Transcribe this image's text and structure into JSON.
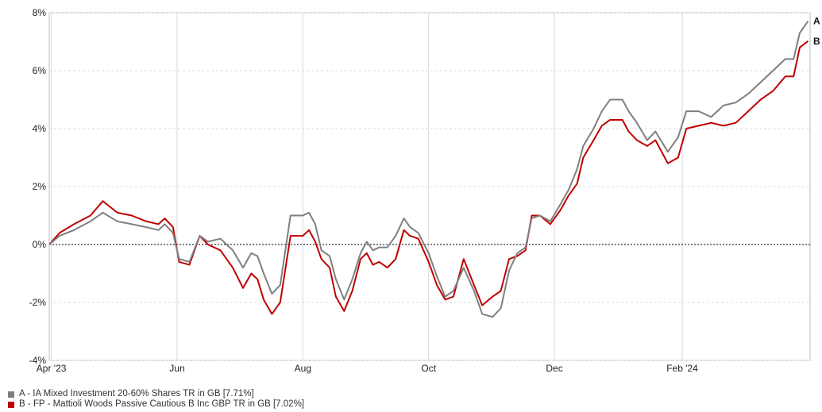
{
  "chart_data": {
    "type": "line",
    "title": "",
    "xlabel": "",
    "ylabel": "",
    "xlim": [
      "2023-03-31",
      "2024-04-03"
    ],
    "ylim": [
      -4,
      8
    ],
    "y_ticks": [
      {
        "value": -4,
        "label": "-4%"
      },
      {
        "value": -2,
        "label": "-2%"
      },
      {
        "value": 0,
        "label": "0%"
      },
      {
        "value": 2,
        "label": "2%"
      },
      {
        "value": 4,
        "label": "4%"
      },
      {
        "value": 6,
        "label": "6%"
      },
      {
        "value": 8,
        "label": "8%"
      }
    ],
    "x_ticks": [
      {
        "date": "2023-04-01",
        "label": "Apr '23"
      },
      {
        "date": "2023-06-01",
        "label": "Jun"
      },
      {
        "date": "2023-08-01",
        "label": "Aug"
      },
      {
        "date": "2023-10-01",
        "label": "Oct"
      },
      {
        "date": "2023-12-01",
        "label": "Dec"
      },
      {
        "date": "2024-02-01",
        "label": "Feb '24"
      }
    ],
    "grid": true,
    "zero_line": "dotted",
    "legend_position": "bottom-left",
    "series": [
      {
        "name": "A - IA Mixed Investment 20-60% Shares TR in GB [7.71%]",
        "end_label": "A",
        "color": "#7f7f7f",
        "points": [
          [
            "2023-03-31",
            0.0
          ],
          [
            "2023-04-05",
            0.3
          ],
          [
            "2023-04-12",
            0.5
          ],
          [
            "2023-04-20",
            0.8
          ],
          [
            "2023-04-26",
            1.1
          ],
          [
            "2023-05-03",
            0.8
          ],
          [
            "2023-05-10",
            0.7
          ],
          [
            "2023-05-17",
            0.6
          ],
          [
            "2023-05-23",
            0.5
          ],
          [
            "2023-05-26",
            0.7
          ],
          [
            "2023-05-30",
            0.4
          ],
          [
            "2023-06-02",
            -0.5
          ],
          [
            "2023-06-07",
            -0.6
          ],
          [
            "2023-06-12",
            0.3
          ],
          [
            "2023-06-16",
            0.1
          ],
          [
            "2023-06-22",
            0.2
          ],
          [
            "2023-06-28",
            -0.2
          ],
          [
            "2023-07-03",
            -0.8
          ],
          [
            "2023-07-07",
            -0.3
          ],
          [
            "2023-07-10",
            -0.4
          ],
          [
            "2023-07-13",
            -1.0
          ],
          [
            "2023-07-17",
            -1.7
          ],
          [
            "2023-07-21",
            -1.4
          ],
          [
            "2023-07-26",
            1.0
          ],
          [
            "2023-08-01",
            1.0
          ],
          [
            "2023-08-04",
            1.1
          ],
          [
            "2023-08-07",
            0.7
          ],
          [
            "2023-08-10",
            -0.2
          ],
          [
            "2023-08-14",
            -0.4
          ],
          [
            "2023-08-17",
            -1.2
          ],
          [
            "2023-08-21",
            -1.9
          ],
          [
            "2023-08-25",
            -1.2
          ],
          [
            "2023-08-29",
            -0.3
          ],
          [
            "2023-09-01",
            0.1
          ],
          [
            "2023-09-04",
            -0.2
          ],
          [
            "2023-09-07",
            -0.1
          ],
          [
            "2023-09-11",
            -0.1
          ],
          [
            "2023-09-15",
            0.3
          ],
          [
            "2023-09-19",
            0.9
          ],
          [
            "2023-09-22",
            0.6
          ],
          [
            "2023-09-26",
            0.4
          ],
          [
            "2023-10-01",
            -0.3
          ],
          [
            "2023-10-05",
            -1.1
          ],
          [
            "2023-10-09",
            -1.8
          ],
          [
            "2023-10-13",
            -1.6
          ],
          [
            "2023-10-18",
            -0.8
          ],
          [
            "2023-10-23",
            -1.6
          ],
          [
            "2023-10-27",
            -2.4
          ],
          [
            "2023-11-01",
            -2.5
          ],
          [
            "2023-11-05",
            -2.2
          ],
          [
            "2023-11-09",
            -0.9
          ],
          [
            "2023-11-13",
            -0.3
          ],
          [
            "2023-11-17",
            -0.1
          ],
          [
            "2023-11-20",
            0.9
          ],
          [
            "2023-11-24",
            1.0
          ],
          [
            "2023-11-29",
            0.8
          ],
          [
            "2023-12-04",
            1.4
          ],
          [
            "2023-12-08",
            1.9
          ],
          [
            "2023-12-12",
            2.6
          ],
          [
            "2023-12-15",
            3.4
          ],
          [
            "2023-12-20",
            4.0
          ],
          [
            "2023-12-24",
            4.6
          ],
          [
            "2023-12-28",
            5.0
          ],
          [
            "2024-01-03",
            5.0
          ],
          [
            "2024-01-06",
            4.6
          ],
          [
            "2024-01-10",
            4.2
          ],
          [
            "2024-01-15",
            3.6
          ],
          [
            "2024-01-19",
            3.9
          ],
          [
            "2024-01-25",
            3.2
          ],
          [
            "2024-01-30",
            3.7
          ],
          [
            "2024-02-03",
            4.6
          ],
          [
            "2024-02-09",
            4.6
          ],
          [
            "2024-02-15",
            4.4
          ],
          [
            "2024-02-21",
            4.8
          ],
          [
            "2024-02-27",
            4.9
          ],
          [
            "2024-03-04",
            5.2
          ],
          [
            "2024-03-10",
            5.6
          ],
          [
            "2024-03-16",
            6.0
          ],
          [
            "2024-03-22",
            6.4
          ],
          [
            "2024-03-26",
            6.4
          ],
          [
            "2024-03-29",
            7.3
          ],
          [
            "2024-04-02",
            7.71
          ]
        ]
      },
      {
        "name": "B - FP - Mattioli Woods Passive Cautious B Inc GBP TR in GB [7.02%]",
        "end_label": "B",
        "color": "#c00000",
        "points": [
          [
            "2023-03-31",
            0.0
          ],
          [
            "2023-04-05",
            0.4
          ],
          [
            "2023-04-12",
            0.7
          ],
          [
            "2023-04-20",
            1.0
          ],
          [
            "2023-04-26",
            1.5
          ],
          [
            "2023-05-03",
            1.1
          ],
          [
            "2023-05-10",
            1.0
          ],
          [
            "2023-05-17",
            0.8
          ],
          [
            "2023-05-23",
            0.7
          ],
          [
            "2023-05-26",
            0.9
          ],
          [
            "2023-05-30",
            0.6
          ],
          [
            "2023-06-02",
            -0.6
          ],
          [
            "2023-06-07",
            -0.7
          ],
          [
            "2023-06-12",
            0.3
          ],
          [
            "2023-06-16",
            0.0
          ],
          [
            "2023-06-22",
            -0.2
          ],
          [
            "2023-06-28",
            -0.8
          ],
          [
            "2023-07-03",
            -1.5
          ],
          [
            "2023-07-07",
            -1.0
          ],
          [
            "2023-07-10",
            -1.2
          ],
          [
            "2023-07-13",
            -1.9
          ],
          [
            "2023-07-17",
            -2.4
          ],
          [
            "2023-07-21",
            -2.0
          ],
          [
            "2023-07-26",
            0.3
          ],
          [
            "2023-08-01",
            0.3
          ],
          [
            "2023-08-04",
            0.5
          ],
          [
            "2023-08-07",
            0.1
          ],
          [
            "2023-08-10",
            -0.5
          ],
          [
            "2023-08-14",
            -0.8
          ],
          [
            "2023-08-17",
            -1.8
          ],
          [
            "2023-08-21",
            -2.3
          ],
          [
            "2023-08-25",
            -1.6
          ],
          [
            "2023-08-29",
            -0.5
          ],
          [
            "2023-09-01",
            -0.3
          ],
          [
            "2023-09-04",
            -0.7
          ],
          [
            "2023-09-07",
            -0.6
          ],
          [
            "2023-09-11",
            -0.8
          ],
          [
            "2023-09-15",
            -0.5
          ],
          [
            "2023-09-19",
            0.5
          ],
          [
            "2023-09-22",
            0.3
          ],
          [
            "2023-09-26",
            0.2
          ],
          [
            "2023-10-01",
            -0.6
          ],
          [
            "2023-10-05",
            -1.4
          ],
          [
            "2023-10-09",
            -1.9
          ],
          [
            "2023-10-13",
            -1.8
          ],
          [
            "2023-10-18",
            -0.5
          ],
          [
            "2023-10-23",
            -1.4
          ],
          [
            "2023-10-27",
            -2.1
          ],
          [
            "2023-11-01",
            -1.8
          ],
          [
            "2023-11-05",
            -1.6
          ],
          [
            "2023-11-09",
            -0.5
          ],
          [
            "2023-11-13",
            -0.4
          ],
          [
            "2023-11-17",
            -0.2
          ],
          [
            "2023-11-20",
            1.0
          ],
          [
            "2023-11-24",
            1.0
          ],
          [
            "2023-11-29",
            0.7
          ],
          [
            "2023-12-04",
            1.2
          ],
          [
            "2023-12-08",
            1.7
          ],
          [
            "2023-12-12",
            2.1
          ],
          [
            "2023-12-15",
            3.0
          ],
          [
            "2023-12-20",
            3.6
          ],
          [
            "2023-12-24",
            4.1
          ],
          [
            "2023-12-28",
            4.3
          ],
          [
            "2024-01-03",
            4.3
          ],
          [
            "2024-01-06",
            3.9
          ],
          [
            "2024-01-10",
            3.6
          ],
          [
            "2024-01-15",
            3.4
          ],
          [
            "2024-01-19",
            3.6
          ],
          [
            "2024-01-25",
            2.8
          ],
          [
            "2024-01-30",
            3.0
          ],
          [
            "2024-02-03",
            4.0
          ],
          [
            "2024-02-09",
            4.1
          ],
          [
            "2024-02-15",
            4.2
          ],
          [
            "2024-02-21",
            4.1
          ],
          [
            "2024-02-27",
            4.2
          ],
          [
            "2024-03-04",
            4.6
          ],
          [
            "2024-03-10",
            5.0
          ],
          [
            "2024-03-16",
            5.3
          ],
          [
            "2024-03-22",
            5.8
          ],
          [
            "2024-03-26",
            5.8
          ],
          [
            "2024-03-29",
            6.8
          ],
          [
            "2024-04-02",
            7.02
          ]
        ]
      }
    ]
  }
}
